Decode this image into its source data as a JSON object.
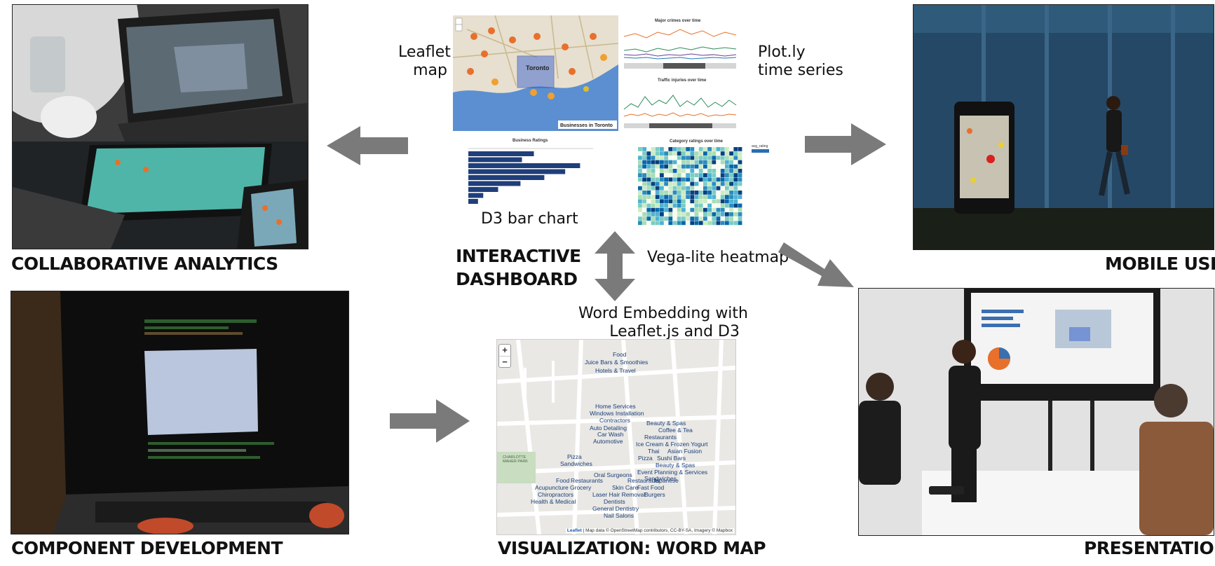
{
  "captions": {
    "collaborative": "COLLABORATIVE ANALYTICS",
    "component": "COMPONENT DEVELOPMENT",
    "dashboard_line1": "INTERACTIVE",
    "dashboard_line2": "DASHBOARD",
    "wordmap": "VISUALIZATION: WORD MAP",
    "mobile": "MOBILE USE",
    "presentation": "PRESENTATION"
  },
  "labels": {
    "leaflet_line1": "Leaflet",
    "leaflet_line2": "map",
    "plotly_line1": "Plot.ly",
    "plotly_line2": "time series",
    "d3bar": "D3 bar chart",
    "vegalite": "Vega-lite heatmap",
    "wordembed_line1": "Word Embedding with",
    "wordembed_line2": "Leaflet.js and D3"
  },
  "dashboard": {
    "map_title": "Businesses in Toronto",
    "map_city": "Toronto",
    "crime_title": "Major crimes over time",
    "traffic_title": "Traffic injuries over time",
    "bar_title": "Business Ratings",
    "bar_values": [
      88,
      72,
      150,
      130,
      102,
      70,
      40,
      20,
      13
    ],
    "heatmap_title": "Category ratings over time",
    "heatmap_legend": "avg_rating"
  },
  "wordmap": {
    "zoom_in": "+",
    "zoom_out": "−",
    "park_label": "CHARLOTTE MAHER PARK",
    "attribution_leaflet": "Leaflet",
    "attribution_text": "| Map data © OpenStreetMap contributors, CC-BY-SA, Imagery © Mapbox",
    "words": [
      "Food",
      "Juice Bars & Smoothies",
      "Hotels & Travel",
      "Home Services",
      "Windows Installation",
      "Contractors",
      "Auto Detailing",
      "Car Wash",
      "Automotive",
      "Beauty & Spas",
      "Coffee & Tea",
      "Restaurants",
      "Ice Cream & Frozen Yogurt",
      "Thai",
      "Asian Fusion",
      "Pizza",
      "Sushi Bars",
      "Beauty & Spas",
      "Event Planning & Services",
      "Sandwiches",
      "Pizza",
      "Sandwiches",
      "Oral Surgeons",
      "Food",
      "Restaurants",
      "Restaurants",
      "Japanese",
      "Acupuncture",
      "Grocery",
      "Skin Care",
      "Fast Food",
      "Chiropractors",
      "Laser Hair Removal",
      "Burgers",
      "Health & Medical",
      "Dentists",
      "General Dentistry",
      "Nail Salons"
    ]
  },
  "colors": {
    "arrow": "#7a7a7a",
    "ocean": "#3a7bc8",
    "bar": "#1f3f7a",
    "marker": "#e8702a"
  }
}
